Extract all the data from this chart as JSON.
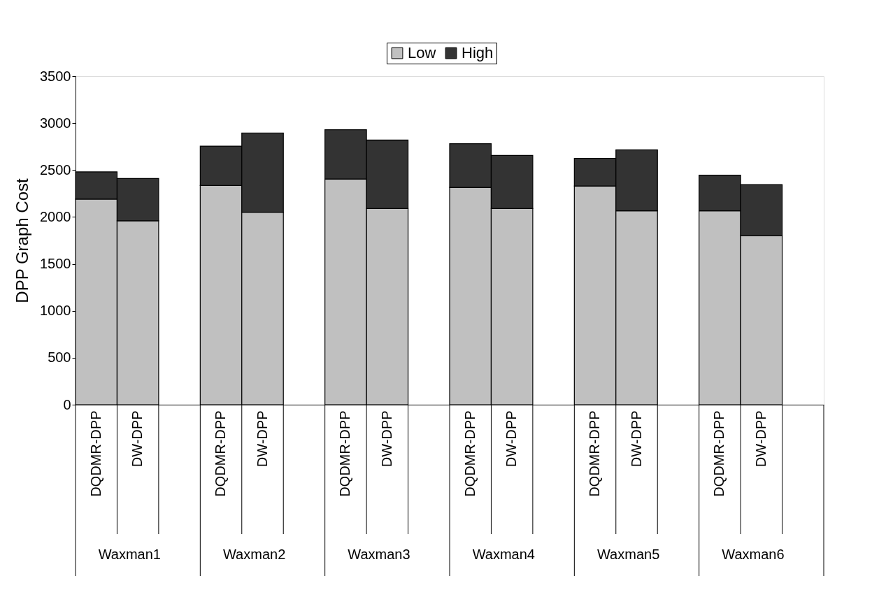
{
  "chart_data": {
    "type": "bar",
    "stacked": true,
    "categories": [
      "DQDMR-DPP",
      "DW-DPP",
      null,
      "DQDMR-DPP",
      "DW-DPP",
      null,
      "DQDMR-DPP",
      "DW-DPP",
      null,
      "DQDMR-DPP",
      "DW-DPP",
      null,
      "DQDMR-DPP",
      "DW-DPP",
      null,
      "DQDMR-DPP",
      "DW-DPP",
      null
    ],
    "series": [
      {
        "name": "Low",
        "color": "#c0c0c0",
        "values": [
          2190,
          1960,
          null,
          2335,
          2050,
          null,
          2405,
          2090,
          null,
          2315,
          2090,
          null,
          2330,
          2065,
          null,
          2065,
          1800,
          null
        ]
      },
      {
        "name": "High",
        "color": "#333333",
        "values": [
          290,
          450,
          null,
          420,
          845,
          null,
          525,
          730,
          null,
          465,
          565,
          null,
          295,
          650,
          null,
          380,
          545,
          null
        ]
      }
    ],
    "annotations": [
      "Waxman1",
      "Waxman2",
      "Waxman3",
      "Waxman4",
      "Waxman5",
      "Waxman6"
    ],
    "ylabel": "DPP Graph Cost",
    "ylim": [
      0,
      3500
    ],
    "yticks": [
      0,
      500,
      1000,
      1500,
      2000,
      2500,
      3000,
      3500
    ],
    "grid": false,
    "legend": "top"
  }
}
